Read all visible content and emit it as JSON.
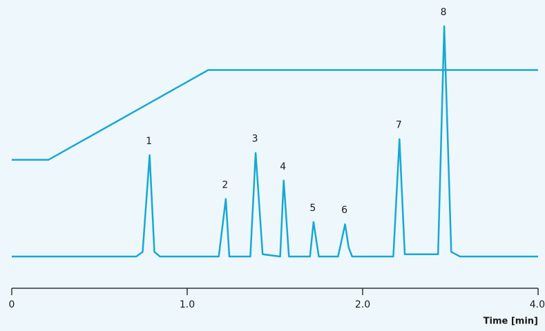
{
  "chart_data": {
    "type": "line",
    "x_label": "Time [min]",
    "xlim": [
      0,
      4
    ],
    "xticks": [
      0,
      {
        "value": 1,
        "label": "1.0"
      },
      {
        "value": 2,
        "label": "2.0"
      },
      {
        "value": 4,
        "label": "4.0"
      }
    ],
    "ylim": [
      0,
      100
    ],
    "color": "#16a8d4",
    "peak_labels": [
      "1",
      "2",
      "3",
      "4",
      "5",
      "6",
      "7",
      "8"
    ],
    "series": [
      {
        "name": "signal",
        "x": [
          0,
          0.71,
          0.746,
          0.786,
          0.813,
          0.845,
          1.18,
          1.22,
          1.24,
          1.36,
          1.39,
          1.43,
          1.53,
          1.55,
          1.58,
          1.7,
          1.72,
          1.75,
          1.86,
          1.9,
          1.92,
          1.94,
          2.35,
          2.42,
          2.48,
          2.86,
          2.93,
          3.01,
          3.11,
          4.0
        ],
        "values": [
          0,
          0,
          2,
          44,
          2,
          0,
          0,
          25,
          0,
          0,
          45,
          1,
          0,
          33,
          0,
          0,
          15,
          0,
          0,
          14,
          4,
          0,
          0,
          51,
          1,
          1,
          100,
          2,
          0,
          0
        ]
      },
      {
        "name": "gradient",
        "x": [
          0,
          0.21,
          1.12,
          4.0
        ],
        "values": [
          42,
          42,
          81,
          81
        ]
      }
    ]
  }
}
